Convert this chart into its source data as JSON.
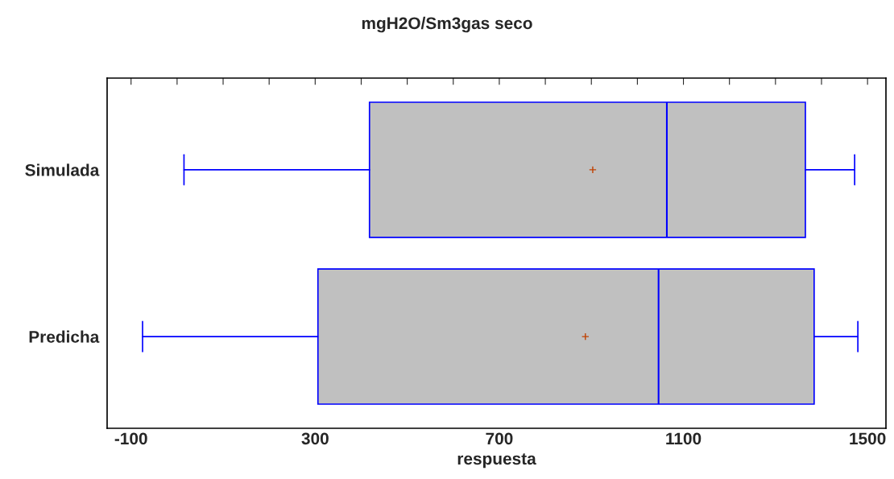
{
  "chart_data": {
    "type": "box",
    "title": "mgH2O/Sm3gas seco",
    "xlabel": "respuesta",
    "orientation": "horizontal",
    "categories": [
      "Simulada",
      "Predicha"
    ],
    "boxes": [
      {
        "low": 15,
        "q1": 418,
        "median": 1064,
        "q3": 1365,
        "high": 1472,
        "mean": 903
      },
      {
        "low": -75,
        "q1": 306,
        "median": 1046,
        "q3": 1384,
        "high": 1479,
        "mean": 887
      }
    ],
    "color": "#c0c0c0",
    "xlim": [
      -152,
      1540
    ],
    "xticks": [
      -100,
      {
        "value": 0,
        "label": null
      },
      {
        "value": 100,
        "label": null
      },
      {
        "value": 200,
        "label": null
      },
      300,
      {
        "value": 400,
        "label": null
      },
      {
        "value": 500,
        "label": null
      },
      {
        "value": 600,
        "label": null
      },
      700,
      {
        "value": 800,
        "label": null
      },
      {
        "value": 900,
        "label": null
      },
      {
        "value": 1000,
        "label": null
      },
      1100,
      {
        "value": 1200,
        "label": null
      },
      {
        "value": 1300,
        "label": null
      },
      {
        "value": 1400,
        "label": null
      },
      1500
    ],
    "grid": false
  }
}
